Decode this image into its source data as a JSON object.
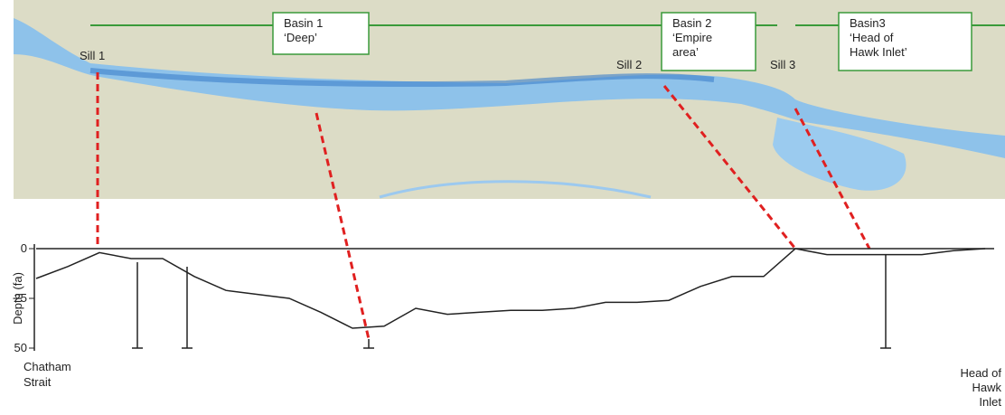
{
  "map": {
    "basins": [
      {
        "lines": [
          "Basin 1",
          "‘Deep’"
        ]
      },
      {
        "lines": [
          "Basin 2",
          "‘Empire",
          "area’"
        ]
      },
      {
        "lines": [
          "Basin3",
          "‘Head of",
          "Hawk Inlet’"
        ]
      }
    ],
    "sills": [
      "Sill 1",
      "Sill 2",
      "Sill 3"
    ]
  },
  "profile": {
    "ylabel": "Depth (fa)",
    "ylim": [
      0,
      50
    ],
    "yticks": [
      0,
      25,
      50
    ],
    "values": [
      15,
      9,
      2,
      5,
      5,
      14,
      21,
      23,
      25,
      32,
      40,
      39,
      30,
      33,
      32,
      31,
      31,
      30,
      27,
      27,
      26,
      19,
      14,
      14,
      0,
      3,
      3,
      3,
      3,
      1,
      0
    ],
    "start_label": [
      "Chatham",
      "Strait"
    ],
    "end_label": [
      "Head of",
      "Hawk",
      "Inlet"
    ]
  }
}
